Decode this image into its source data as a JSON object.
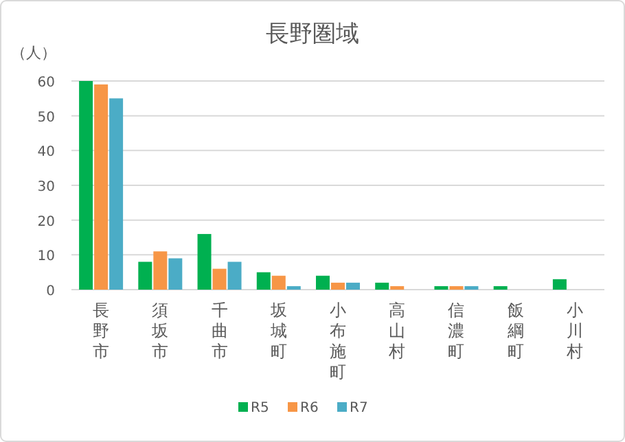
{
  "chart_data": {
    "type": "bar",
    "title": "長野圏域",
    "ylabel": "（人）",
    "categories": [
      "長野市",
      "須坂市",
      "千曲市",
      "坂城町",
      "小布施町",
      "高山村",
      "信濃町",
      "飯綱町",
      "小川村"
    ],
    "series": [
      {
        "name": "R5",
        "color": "#00b050",
        "values": [
          60,
          8,
          16,
          5,
          4,
          2,
          1,
          1,
          3
        ]
      },
      {
        "name": "R6",
        "color": "#f79646",
        "values": [
          59,
          11,
          6,
          4,
          2,
          1,
          1,
          0,
          0
        ]
      },
      {
        "name": "R7",
        "color": "#4bacc6",
        "values": [
          55,
          9,
          8,
          1,
          2,
          0,
          1,
          0,
          0
        ]
      }
    ],
    "ylim": [
      0,
      60
    ],
    "yticks": [
      0,
      10,
      20,
      30,
      40,
      50,
      60
    ],
    "grid": "y",
    "legend": "bottom"
  }
}
